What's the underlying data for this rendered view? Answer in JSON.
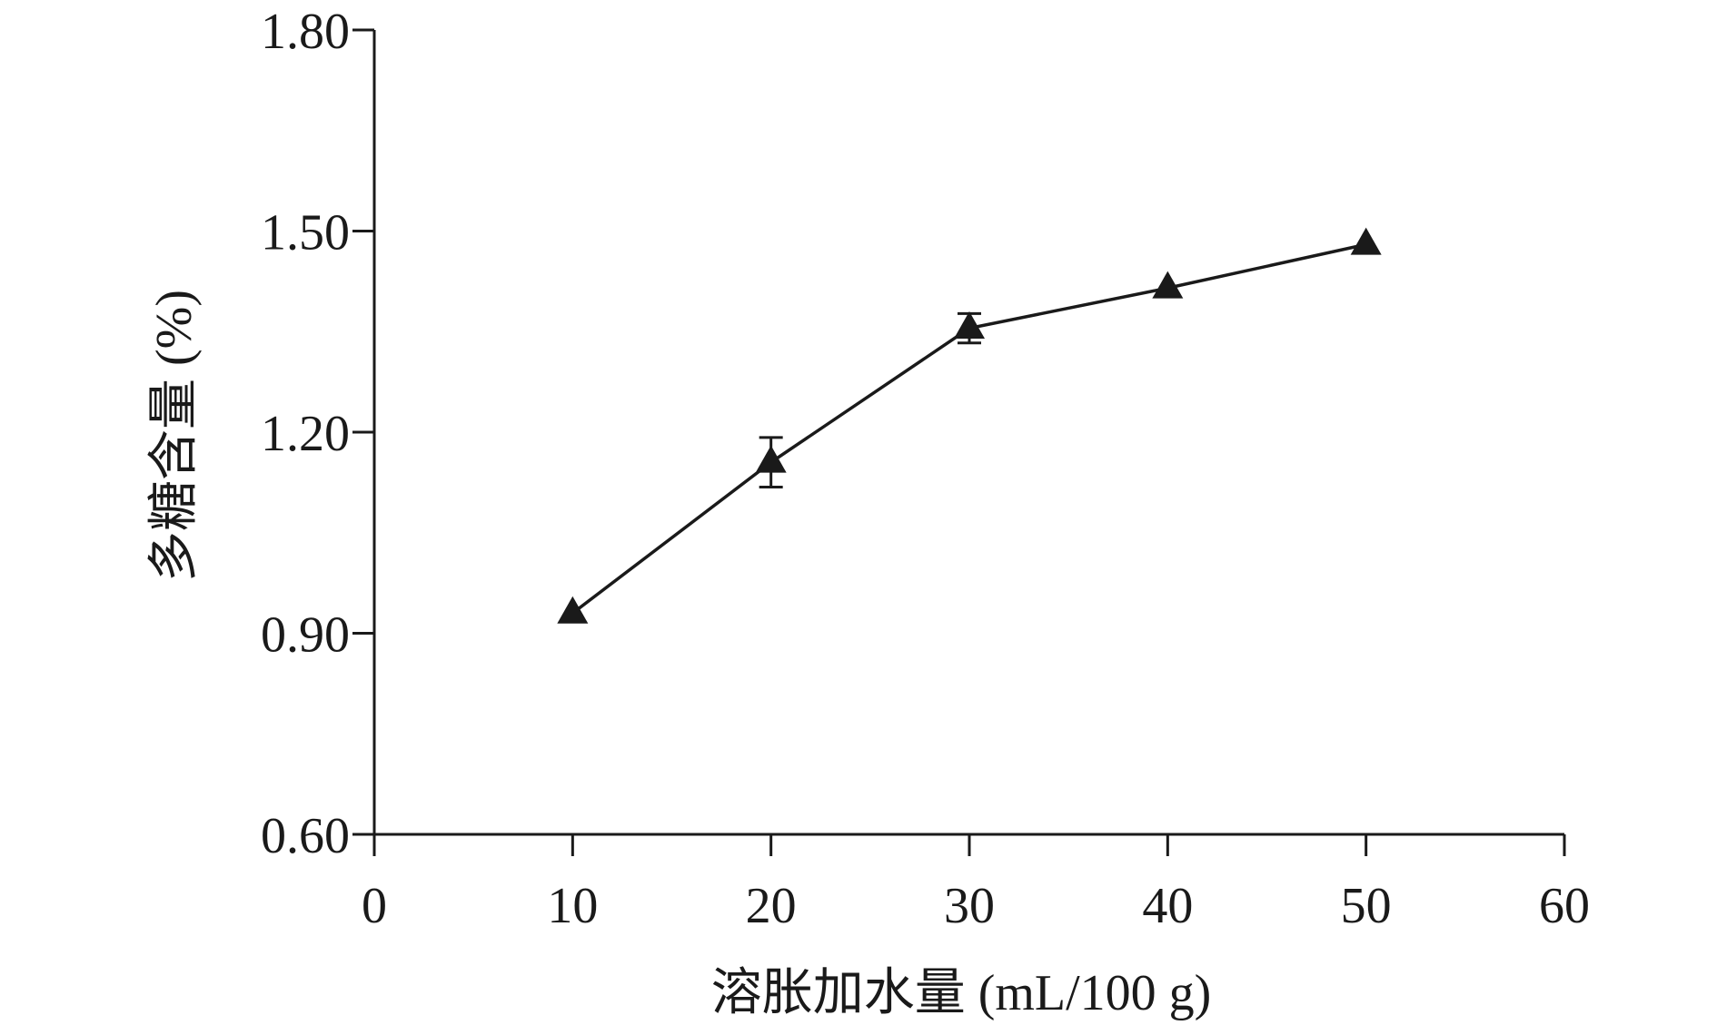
{
  "chart_data": {
    "type": "line",
    "title": "",
    "xlabel": "溶胀加水量 (mL/100 g)",
    "ylabel": "多糖含量 (%)",
    "xlim": [
      0,
      60
    ],
    "ylim": [
      0.6,
      1.8
    ],
    "x_ticks": [
      "0",
      "10",
      "20",
      "30",
      "40",
      "50",
      "60"
    ],
    "y_ticks": [
      "0.60",
      "0.90",
      "1.20",
      "1.50",
      "1.80"
    ],
    "grid": false,
    "legend": "none",
    "series": [
      {
        "marker": "triangle",
        "color": "#1a1a1a",
        "x": [
          10,
          20,
          30,
          40,
          50
        ],
        "y": [
          0.93,
          1.155,
          1.355,
          1.415,
          1.48
        ],
        "error": [
          0.0,
          0.037,
          0.022,
          0.0,
          0.0
        ]
      }
    ]
  }
}
